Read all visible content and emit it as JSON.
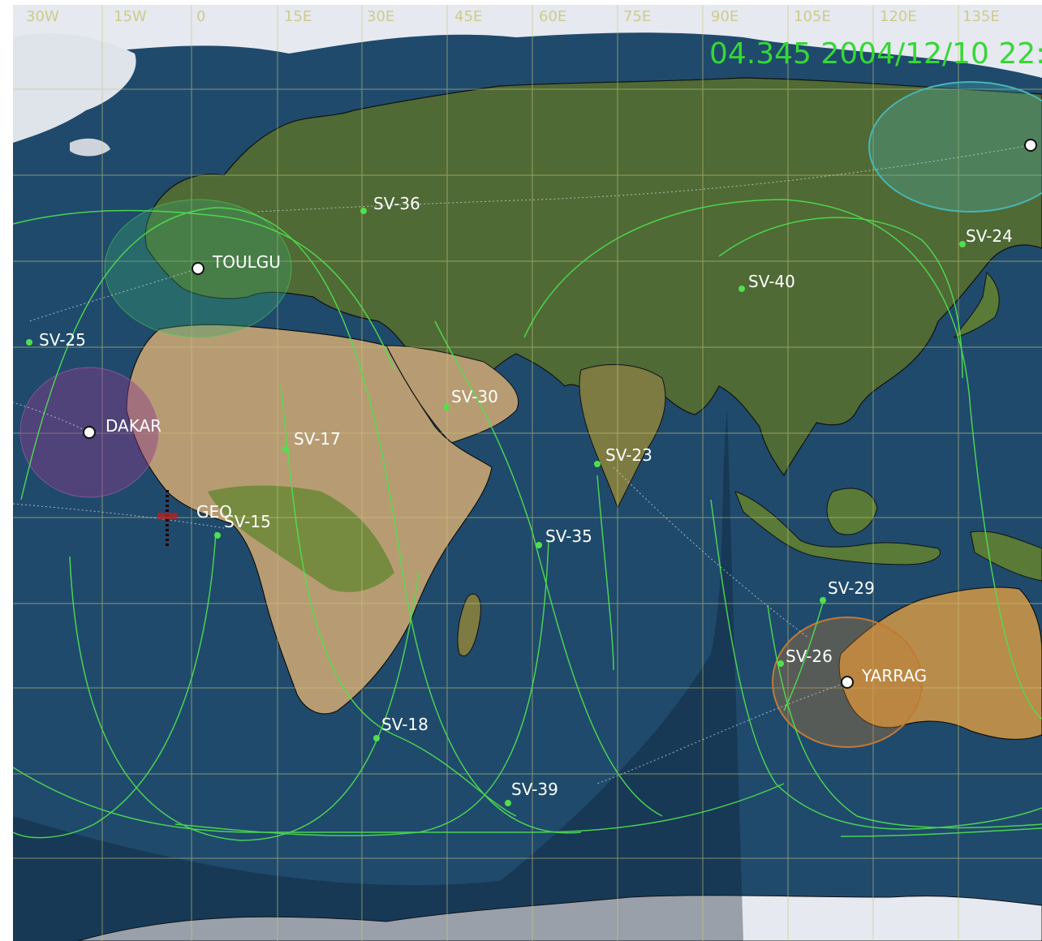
{
  "header": {
    "clock_text": "04.345 2004/12/10 22:"
  },
  "axis": {
    "longitude_labels": [
      "30W",
      "15W",
      "0",
      "15E",
      "30E",
      "45E",
      "60E",
      "75E",
      "90E",
      "105E",
      "120E",
      "135E"
    ]
  },
  "colors": {
    "ocean": "#1f4a6c",
    "land": "#7e7a45",
    "desert": "#b79c73",
    "grid": "#c9c77a",
    "track": "#4fe04f",
    "ice": "#e6e9ef"
  },
  "stations": [
    {
      "name": "TOULGU",
      "coverage_color": "#3aa36b"
    },
    {
      "name": "DAKAR",
      "coverage_color": "#8a3b8a"
    },
    {
      "name": "YARRAG",
      "coverage_color": "#c07a35"
    },
    {
      "name": "",
      "coverage_color": "#49b4b4"
    }
  ],
  "satellites": [
    {
      "name": "SV-36"
    },
    {
      "name": "SV-24"
    },
    {
      "name": "SV-40"
    },
    {
      "name": "SV-25"
    },
    {
      "name": "SV-30"
    },
    {
      "name": "SV-17"
    },
    {
      "name": "SV-23"
    },
    {
      "name": "SV-15"
    },
    {
      "name": "SV-35"
    },
    {
      "name": "SV-29"
    },
    {
      "name": "SV-26"
    },
    {
      "name": "SV-18"
    },
    {
      "name": "SV-39"
    }
  ],
  "geo_label": "GEO"
}
